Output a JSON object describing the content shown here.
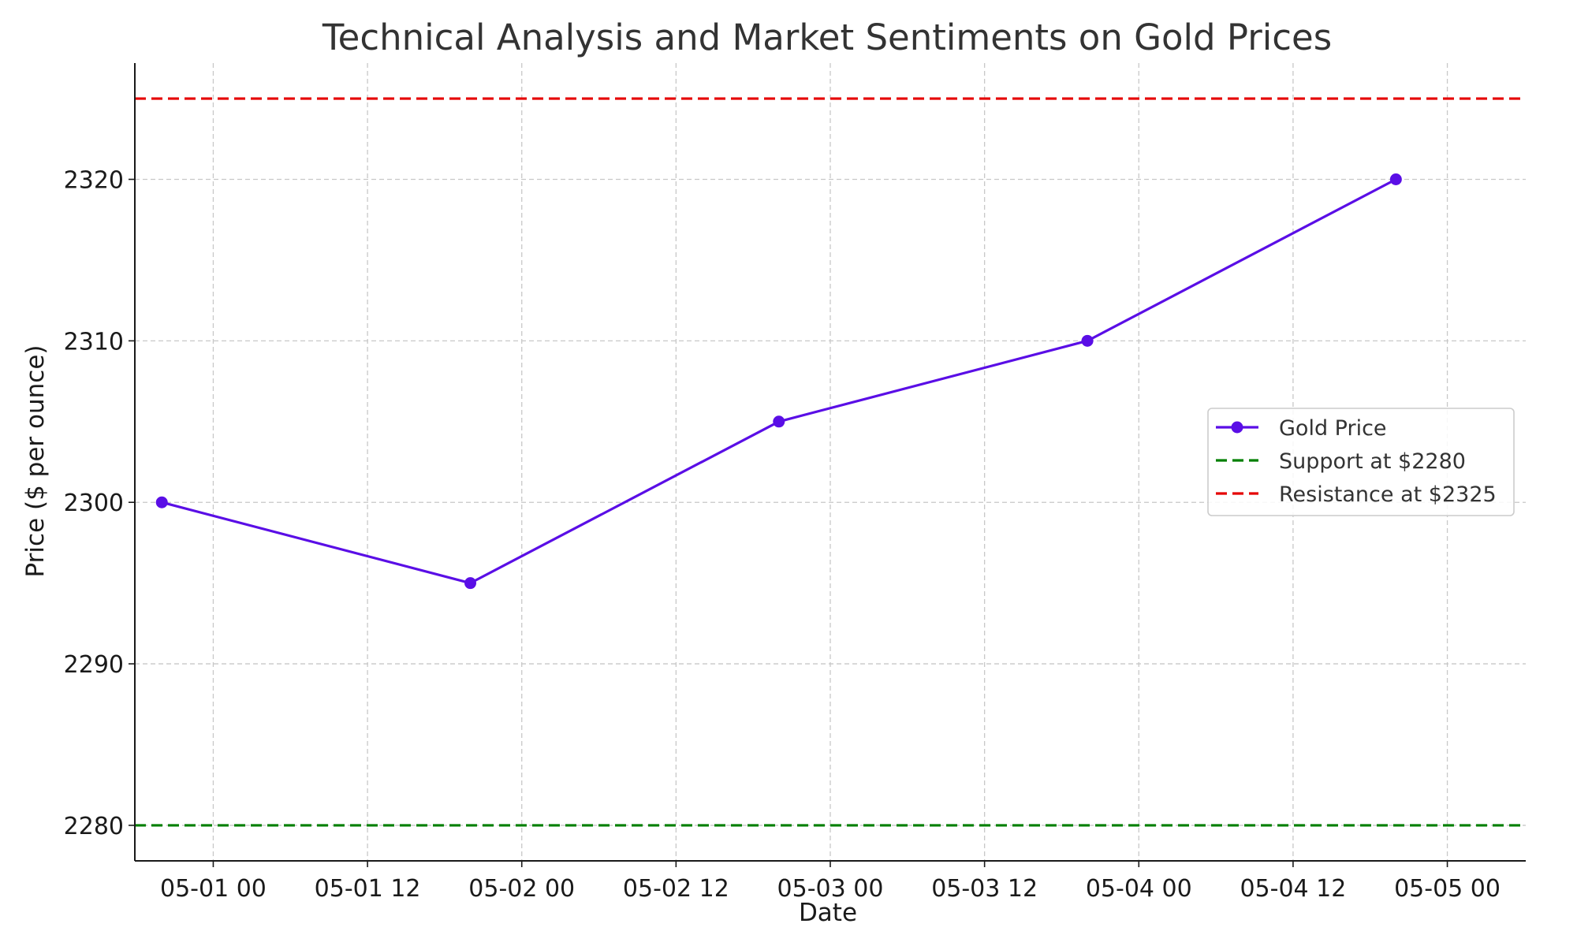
{
  "chart_data": {
    "type": "line",
    "title": "Technical Analysis and Market Sentiments on Gold Prices",
    "xlabel": "Date",
    "ylabel": "Price ($ per ounce)",
    "x_ticks": [
      "05-01 00",
      "05-01 12",
      "05-02 00",
      "05-02 12",
      "05-03 00",
      "05-03 12",
      "05-04 00",
      "05-04 12",
      "05-05 00"
    ],
    "y_ticks": [
      2280,
      2290,
      2300,
      2310,
      2320
    ],
    "xlim": [
      "2024-04-30 17:54",
      "2024-05-05 06:06"
    ],
    "ylim": [
      2277.8,
      2327.2
    ],
    "grid": true,
    "legend_position": "center-right",
    "series": [
      {
        "name": "Gold Price",
        "color": "#5a0ee6",
        "marker": "circle",
        "x": [
          "2024-04-30 20:00",
          "2024-05-01 20:00",
          "2024-05-02 20:00",
          "2024-05-03 20:00",
          "2024-05-04 20:00"
        ],
        "y": [
          2300,
          2295,
          2305,
          2310,
          2320
        ]
      }
    ],
    "reference_lines": [
      {
        "name": "Support at $2280",
        "y": 2280,
        "color": "#007f00",
        "style": "dashed"
      },
      {
        "name": "Resistance at $2325",
        "y": 2325,
        "color": "#e50000",
        "style": "dashed"
      }
    ]
  }
}
